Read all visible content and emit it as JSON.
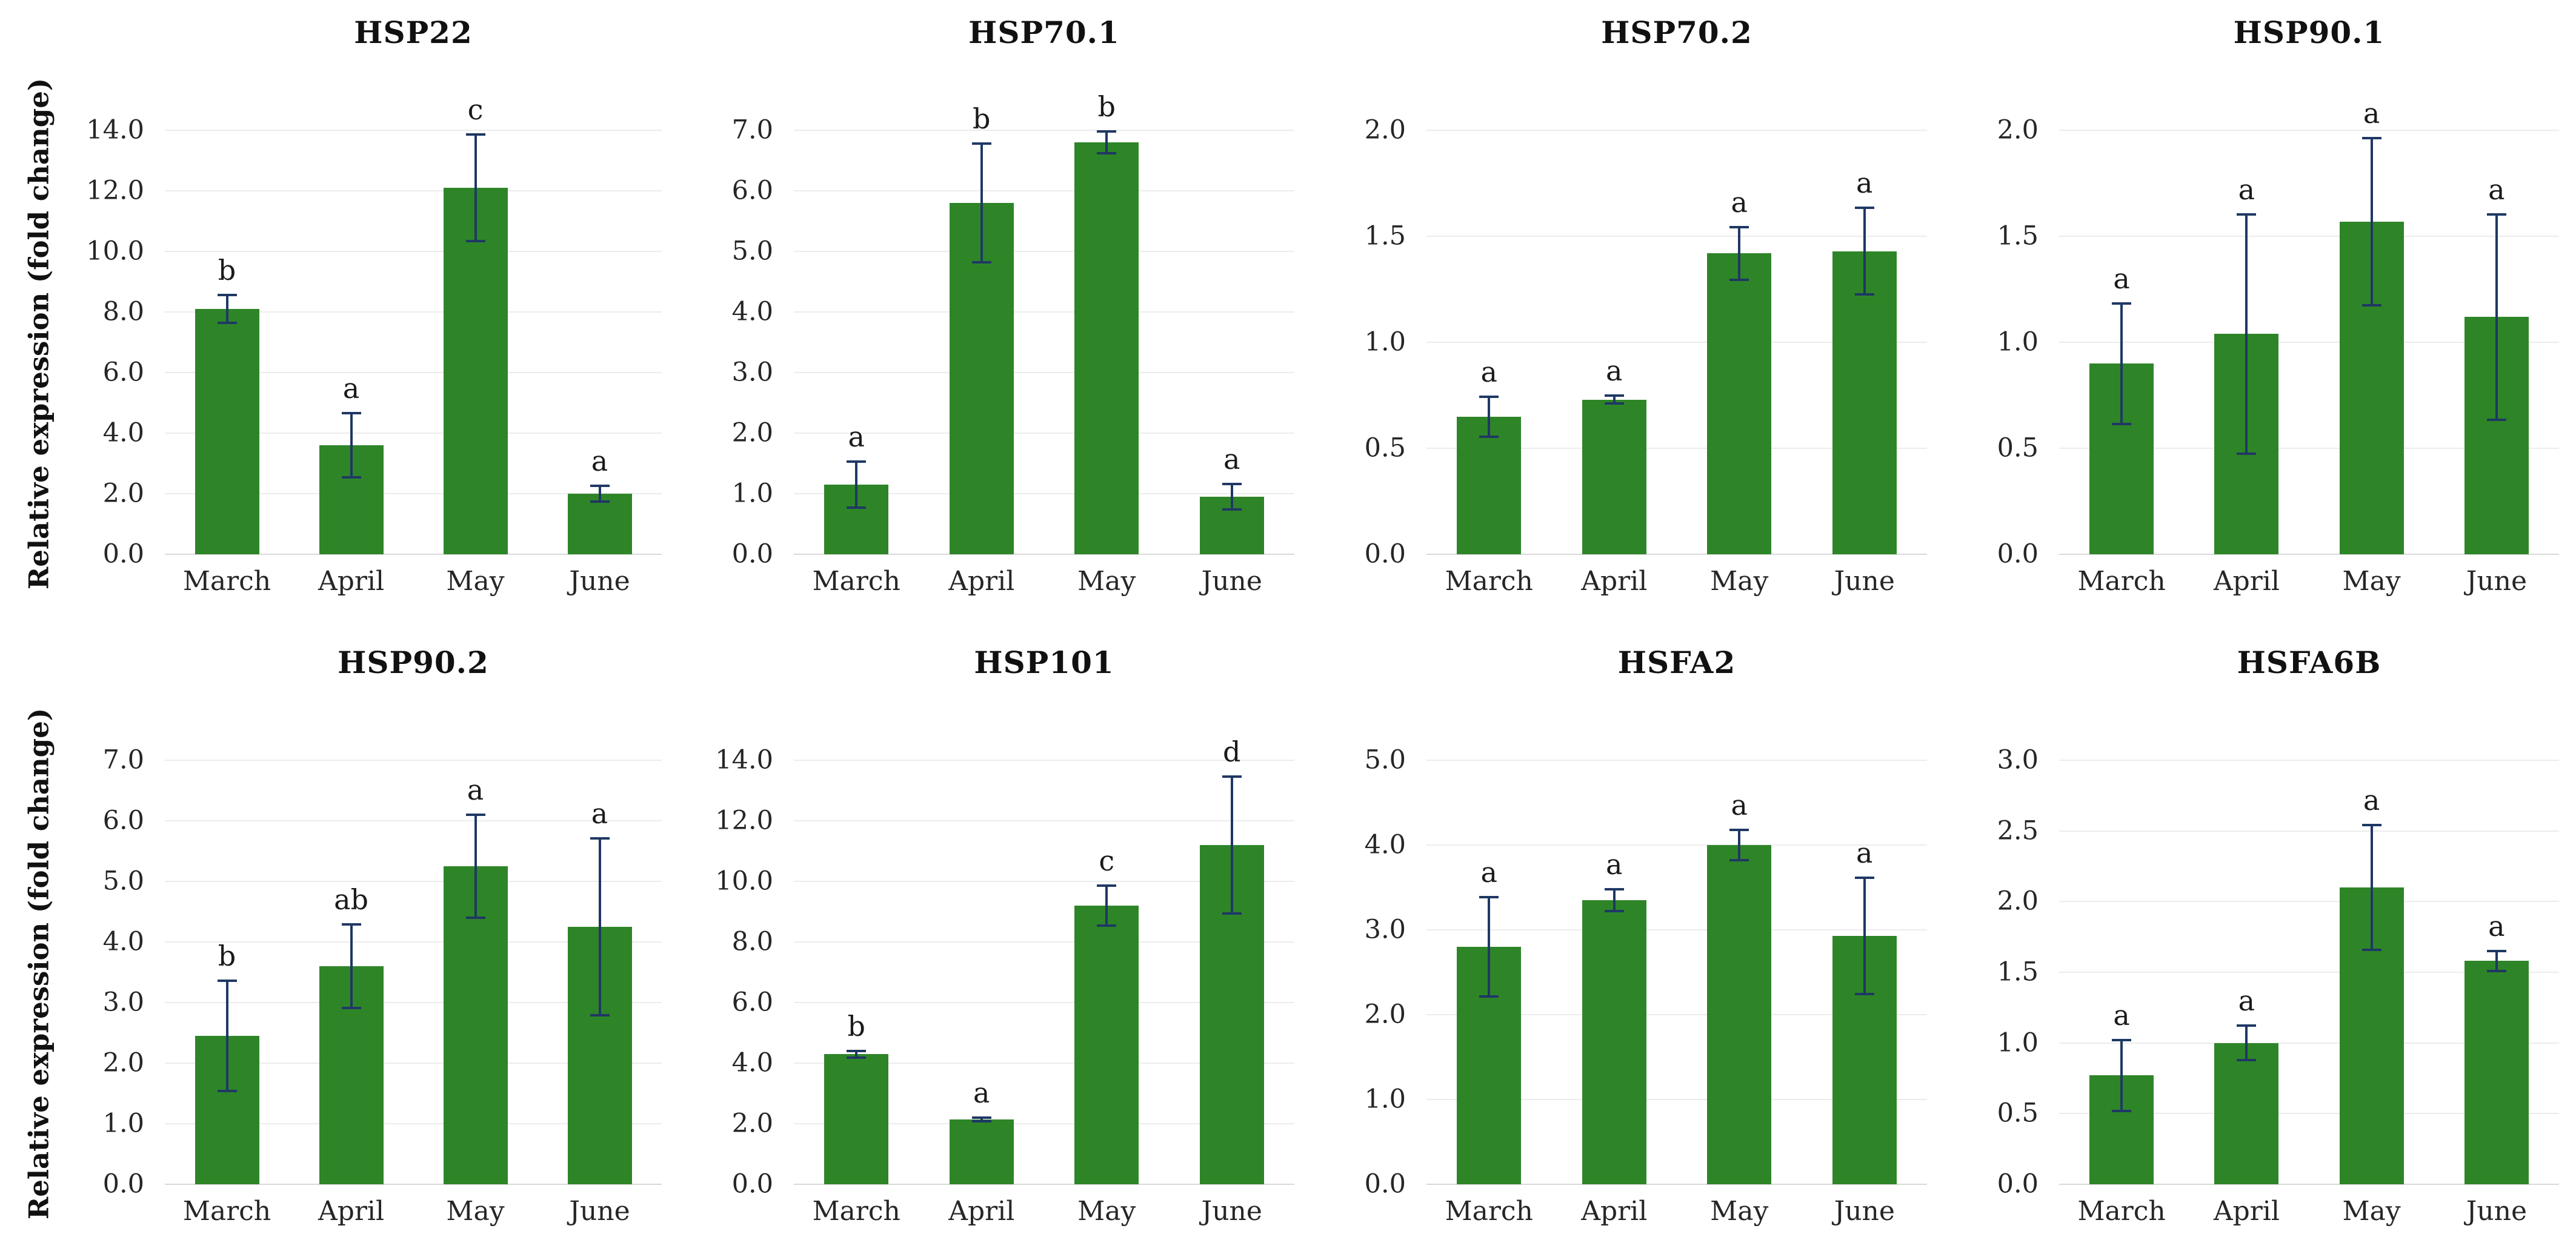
{
  "figure": {
    "ylabel": "Relative expression (fold change)",
    "categories": [
      "March",
      "April",
      "May",
      "June"
    ],
    "colors": {
      "bar": "#2E8528",
      "error_bar": "#1F3864",
      "gridline": "#ECECEC",
      "axis_line": "#D9D9D9",
      "text": "#1A1A1A"
    }
  },
  "chart_data": [
    {
      "type": "bar",
      "title": "HSP22",
      "ylabel": "Relative expression (fold change)",
      "categories": [
        "March",
        "April",
        "May",
        "June"
      ],
      "values": [
        8.1,
        3.6,
        12.1,
        2.0
      ],
      "errors": [
        0.5,
        1.1,
        1.8,
        0.3
      ],
      "letters": [
        "b",
        "a",
        "c",
        "a"
      ],
      "ylim": [
        0,
        14
      ],
      "ystep": 2,
      "grid": true,
      "legend": false
    },
    {
      "type": "bar",
      "title": "HSP70.1",
      "ylabel": "",
      "categories": [
        "March",
        "April",
        "May",
        "June"
      ],
      "values": [
        1.15,
        5.8,
        6.8,
        0.95
      ],
      "errors": [
        0.4,
        1.0,
        0.2,
        0.23
      ],
      "letters": [
        "a",
        "b",
        "b",
        "a"
      ],
      "ylim": [
        0,
        7
      ],
      "ystep": 1,
      "grid": true,
      "legend": false
    },
    {
      "type": "bar",
      "title": "HSP70.2",
      "ylabel": "",
      "categories": [
        "March",
        "April",
        "May",
        "June"
      ],
      "values": [
        0.65,
        0.73,
        1.42,
        1.43
      ],
      "errors": [
        0.1,
        0.025,
        0.13,
        0.21
      ],
      "letters": [
        "a",
        "a",
        "a",
        "a"
      ],
      "ylim": [
        0,
        2
      ],
      "ystep": 0.5,
      "grid": true,
      "legend": false
    },
    {
      "type": "bar",
      "title": "HSP90.1",
      "ylabel": "",
      "categories": [
        "March",
        "April",
        "May",
        "June"
      ],
      "values": [
        0.9,
        1.04,
        1.57,
        1.12
      ],
      "errors": [
        0.29,
        0.57,
        0.4,
        0.49
      ],
      "letters": [
        "a",
        "a",
        "a",
        "a"
      ],
      "ylim": [
        0,
        2
      ],
      "ystep": 0.5,
      "grid": true,
      "legend": false
    },
    {
      "type": "bar",
      "title": "HSP90.2",
      "ylabel": "Relative expression (fold change)",
      "categories": [
        "March",
        "April",
        "May",
        "June"
      ],
      "values": [
        2.45,
        3.6,
        5.25,
        4.25
      ],
      "errors": [
        0.93,
        0.71,
        0.87,
        1.48
      ],
      "letters": [
        "b",
        "ab",
        "a",
        "a"
      ],
      "ylim": [
        0,
        7
      ],
      "ystep": 1,
      "grid": true,
      "legend": false
    },
    {
      "type": "bar",
      "title": "HSP101",
      "ylabel": "",
      "categories": [
        "March",
        "April",
        "May",
        "June"
      ],
      "values": [
        4.3,
        2.15,
        9.2,
        11.2
      ],
      "errors": [
        0.15,
        0.1,
        0.7,
        2.3
      ],
      "letters": [
        "b",
        "a",
        "c",
        "d"
      ],
      "ylim": [
        0,
        14
      ],
      "ystep": 2,
      "grid": true,
      "legend": false
    },
    {
      "type": "bar",
      "title": "HSFA2",
      "ylabel": "",
      "categories": [
        "March",
        "April",
        "May",
        "June"
      ],
      "values": [
        2.8,
        3.35,
        4.0,
        2.93
      ],
      "errors": [
        0.6,
        0.14,
        0.19,
        0.7
      ],
      "letters": [
        "a",
        "a",
        "a",
        "a"
      ],
      "ylim": [
        0,
        5
      ],
      "ystep": 1,
      "grid": true,
      "legend": false
    },
    {
      "type": "bar",
      "title": "HSFA6B",
      "ylabel": "",
      "categories": [
        "March",
        "April",
        "May",
        "June"
      ],
      "values": [
        0.77,
        1.0,
        2.1,
        1.58
      ],
      "errors": [
        0.26,
        0.13,
        0.45,
        0.08
      ],
      "letters": [
        "a",
        "a",
        "a",
        "a"
      ],
      "ylim": [
        0,
        3
      ],
      "ystep": 0.5,
      "grid": true,
      "legend": false
    }
  ]
}
